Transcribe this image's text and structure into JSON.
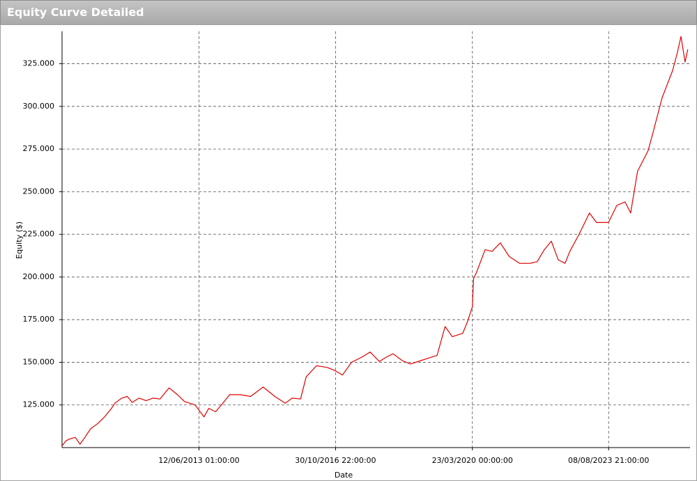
{
  "chart_data": {
    "type": "line",
    "title": "Equity Curve Detailed",
    "x_label": "Date",
    "y_label": "Equity ($)",
    "color": "#e00000",
    "grid": true,
    "xlim": [
      "2010-01-19",
      "2025-08-15"
    ],
    "xticks": [
      {
        "value": "2013-06-12T01:00:00",
        "label": "12/06/2013 01:00:00"
      },
      {
        "value": "2016-10-30T22:00:00",
        "label": "30/10/2016 22:00:00"
      },
      {
        "value": "2020-03-23T00:00:00",
        "label": "23/03/2020 00:00:00"
      },
      {
        "value": "2023-08-08T21:00:00",
        "label": "08/08/2023 21:00:00"
      }
    ],
    "ylim": [
      100000,
      344000
    ],
    "yticks": [
      {
        "value": 125000,
        "label": "125.000"
      },
      {
        "value": 150000,
        "label": "150.000"
      },
      {
        "value": 175000,
        "label": "175.000"
      },
      {
        "value": 200000,
        "label": "200.000"
      },
      {
        "value": 225000,
        "label": "225.000"
      },
      {
        "value": 250000,
        "label": "250.000"
      },
      {
        "value": 275000,
        "label": "275.000"
      },
      {
        "value": 300000,
        "label": "300.000"
      },
      {
        "value": 325000,
        "label": "325.000"
      }
    ],
    "x": [
      "2010-01-19",
      "2010-02-24",
      "2010-03-28",
      "2010-05-18",
      "2010-07-01",
      "2010-08-14",
      "2010-10-04",
      "2010-12-06",
      "2011-02-08",
      "2011-04-12",
      "2011-05-12",
      "2011-07-14",
      "2011-09-02",
      "2011-10-16",
      "2011-12-18",
      "2012-02-19",
      "2012-04-22",
      "2012-06-24",
      "2012-09-14",
      "2012-11-29",
      "2013-02-01",
      "2013-05-07",
      "2013-07-27",
      "2013-09-09",
      "2013-11-10",
      "2014-01-14",
      "2014-03-17",
      "2014-06-20",
      "2014-09-23",
      "2015-01-14",
      "2015-04-30",
      "2015-08-02",
      "2015-10-04",
      "2015-12-19",
      "2016-02-08",
      "2016-05-12",
      "2016-08-15",
      "2016-10-30",
      "2017-01-01",
      "2017-03-25",
      "2017-06-25",
      "2017-09-09",
      "2017-12-01",
      "2018-02-02",
      "2018-04-05",
      "2018-06-26",
      "2018-09-09",
      "2018-12-13",
      "2019-03-18",
      "2019-05-08",
      "2019-07-20",
      "2019-09-23",
      "2019-12-27",
      "2020-02-09",
      "2020-03-23",
      "2020-04-03",
      "2020-05-01",
      "2020-07-16",
      "2020-09-17",
      "2020-12-01",
      "2021-02-20",
      "2021-05-25",
      "2021-08-28",
      "2021-10-31",
      "2022-01-03",
      "2022-03-08",
      "2022-05-10",
      "2022-07-10",
      "2022-08-22",
      "2022-11-14",
      "2023-02-16",
      "2023-04-20",
      "2023-08-08",
      "2023-10-22",
      "2024-01-05",
      "2024-02-24",
      "2024-04-27",
      "2024-07-31",
      "2024-09-13",
      "2024-12-05",
      "2025-03-10",
      "2025-04-22",
      "2025-05-25",
      "2025-07-01",
      "2025-07-26"
    ],
    "values": [
      101000,
      104000,
      105000,
      106000,
      102000,
      106000,
      111000,
      114000,
      118000,
      123000,
      126000,
      129000,
      130000,
      126500,
      129000,
      127500,
      129000,
      128500,
      135000,
      131000,
      127000,
      125000,
      118000,
      123000,
      121000,
      126000,
      131000,
      131000,
      130000,
      135500,
      130000,
      126000,
      129000,
      128500,
      141500,
      148000,
      147000,
      145000,
      142500,
      150000,
      153000,
      156000,
      150500,
      153000,
      155000,
      151000,
      149000,
      151000,
      153000,
      154000,
      171000,
      165000,
      167000,
      174000,
      182500,
      199000,
      203000,
      216000,
      215000,
      220000,
      212000,
      208000,
      208000,
      209000,
      216000,
      221000,
      210000,
      208000,
      215000,
      225000,
      237500,
      232000,
      232000,
      242000,
      244000,
      237500,
      262000,
      274000,
      284500,
      305000,
      321000,
      331500,
      341000,
      326000,
      333500
    ]
  }
}
